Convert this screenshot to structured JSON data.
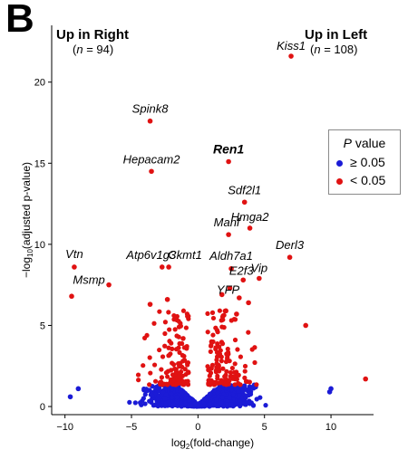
{
  "panel_label": "B",
  "groups": {
    "right": {
      "title": "Up in Right",
      "n_prefix": "(",
      "n_symbol": "n",
      "n_rest": " = 94)"
    },
    "left": {
      "title": "Up in Left",
      "n_prefix": "(",
      "n_symbol": "n",
      "n_rest": " = 108)"
    }
  },
  "legend": {
    "title_symbol": "P",
    "title_rest": " value",
    "items": [
      {
        "label": "≥ 0.05",
        "color": "#1b1bd6"
      },
      {
        "label": "< 0.05",
        "color": "#e01212"
      }
    ]
  },
  "chart_data": {
    "type": "scatter",
    "xlabel": "log2(fold-change)",
    "ylabel": "−log10(adjusted p-value)",
    "xlim": [
      -11,
      13.2
    ],
    "ylim": [
      -0.5,
      23.5
    ],
    "xticks": [
      -10,
      -5,
      0,
      5,
      10
    ],
    "yticks": [
      0,
      5,
      10,
      15,
      20
    ],
    "grid": false,
    "legend_position": "right",
    "colors": {
      "sig": "#e01212",
      "ns": "#1b1bd6"
    },
    "labeled_points": [
      {
        "gene": "Kiss1",
        "x": 7.0,
        "y": 21.6,
        "sig": true,
        "bold": false
      },
      {
        "gene": "Spink8",
        "x": -3.6,
        "y": 17.6,
        "sig": true,
        "bold": false
      },
      {
        "gene": "Ren1",
        "x": 2.3,
        "y": 15.1,
        "sig": true,
        "bold": true
      },
      {
        "gene": "Hepacam2",
        "x": -3.5,
        "y": 14.5,
        "sig": true,
        "bold": false
      },
      {
        "gene": "Sdf2l1",
        "x": 3.5,
        "y": 12.6,
        "sig": true,
        "bold": false
      },
      {
        "gene": "Hmga2",
        "x": 3.9,
        "y": 11.0,
        "sig": true,
        "bold": false
      },
      {
        "gene": "Manf",
        "x": 2.3,
        "y": 10.6,
        "sig": true,
        "bold": false
      },
      {
        "gene": "Derl3",
        "x": 6.9,
        "y": 9.2,
        "sig": true,
        "bold": false
      },
      {
        "gene": "Vtn",
        "x": -9.3,
        "y": 8.6,
        "sig": true,
        "bold": false
      },
      {
        "gene": "Atp6v1g3",
        "x": -2.7,
        "y": 8.6,
        "sig": true,
        "bold": false
      },
      {
        "gene": "Ckmt1",
        "x": -2.2,
        "y": 8.6,
        "sig": true,
        "bold": false
      },
      {
        "gene": "Aldh7a1",
        "x": 2.5,
        "y": 8.5,
        "sig": true,
        "bold": false
      },
      {
        "gene": "E2f3",
        "x": 3.4,
        "y": 7.8,
        "sig": true,
        "bold": false
      },
      {
        "gene": "Vip",
        "x": 4.6,
        "y": 7.9,
        "sig": true,
        "bold": false
      },
      {
        "gene": "Msmp",
        "x": -6.7,
        "y": 7.5,
        "sig": true,
        "bold": false
      },
      {
        "gene": "YFP",
        "x": 2.4,
        "y": 7.3,
        "sig": true,
        "bold": false
      }
    ],
    "extra_points": [
      {
        "x": -9.5,
        "y": 6.8,
        "sig": true
      },
      {
        "x": -3.6,
        "y": 6.3,
        "sig": true
      },
      {
        "x": -2.3,
        "y": 6.6,
        "sig": true
      },
      {
        "x": 1.8,
        "y": 6.9,
        "sig": true
      },
      {
        "x": 3.1,
        "y": 6.7,
        "sig": true
      },
      {
        "x": 3.8,
        "y": 6.4,
        "sig": true
      },
      {
        "x": 2.1,
        "y": 5.9,
        "sig": true
      },
      {
        "x": 2.9,
        "y": 5.7,
        "sig": true
      },
      {
        "x": 8.1,
        "y": 5.0,
        "sig": true
      },
      {
        "x": 12.6,
        "y": 1.7,
        "sig": true
      },
      {
        "x": -9.6,
        "y": 0.6,
        "sig": false
      },
      {
        "x": -9.0,
        "y": 1.1,
        "sig": false
      },
      {
        "x": 9.9,
        "y": 0.9,
        "sig": false
      },
      {
        "x": 10.0,
        "y": 1.1,
        "sig": false
      }
    ],
    "generated_cloud": {
      "seed": 7,
      "sig_count": 260,
      "ns_count": 1400,
      "y_threshold": 1.35
    }
  }
}
